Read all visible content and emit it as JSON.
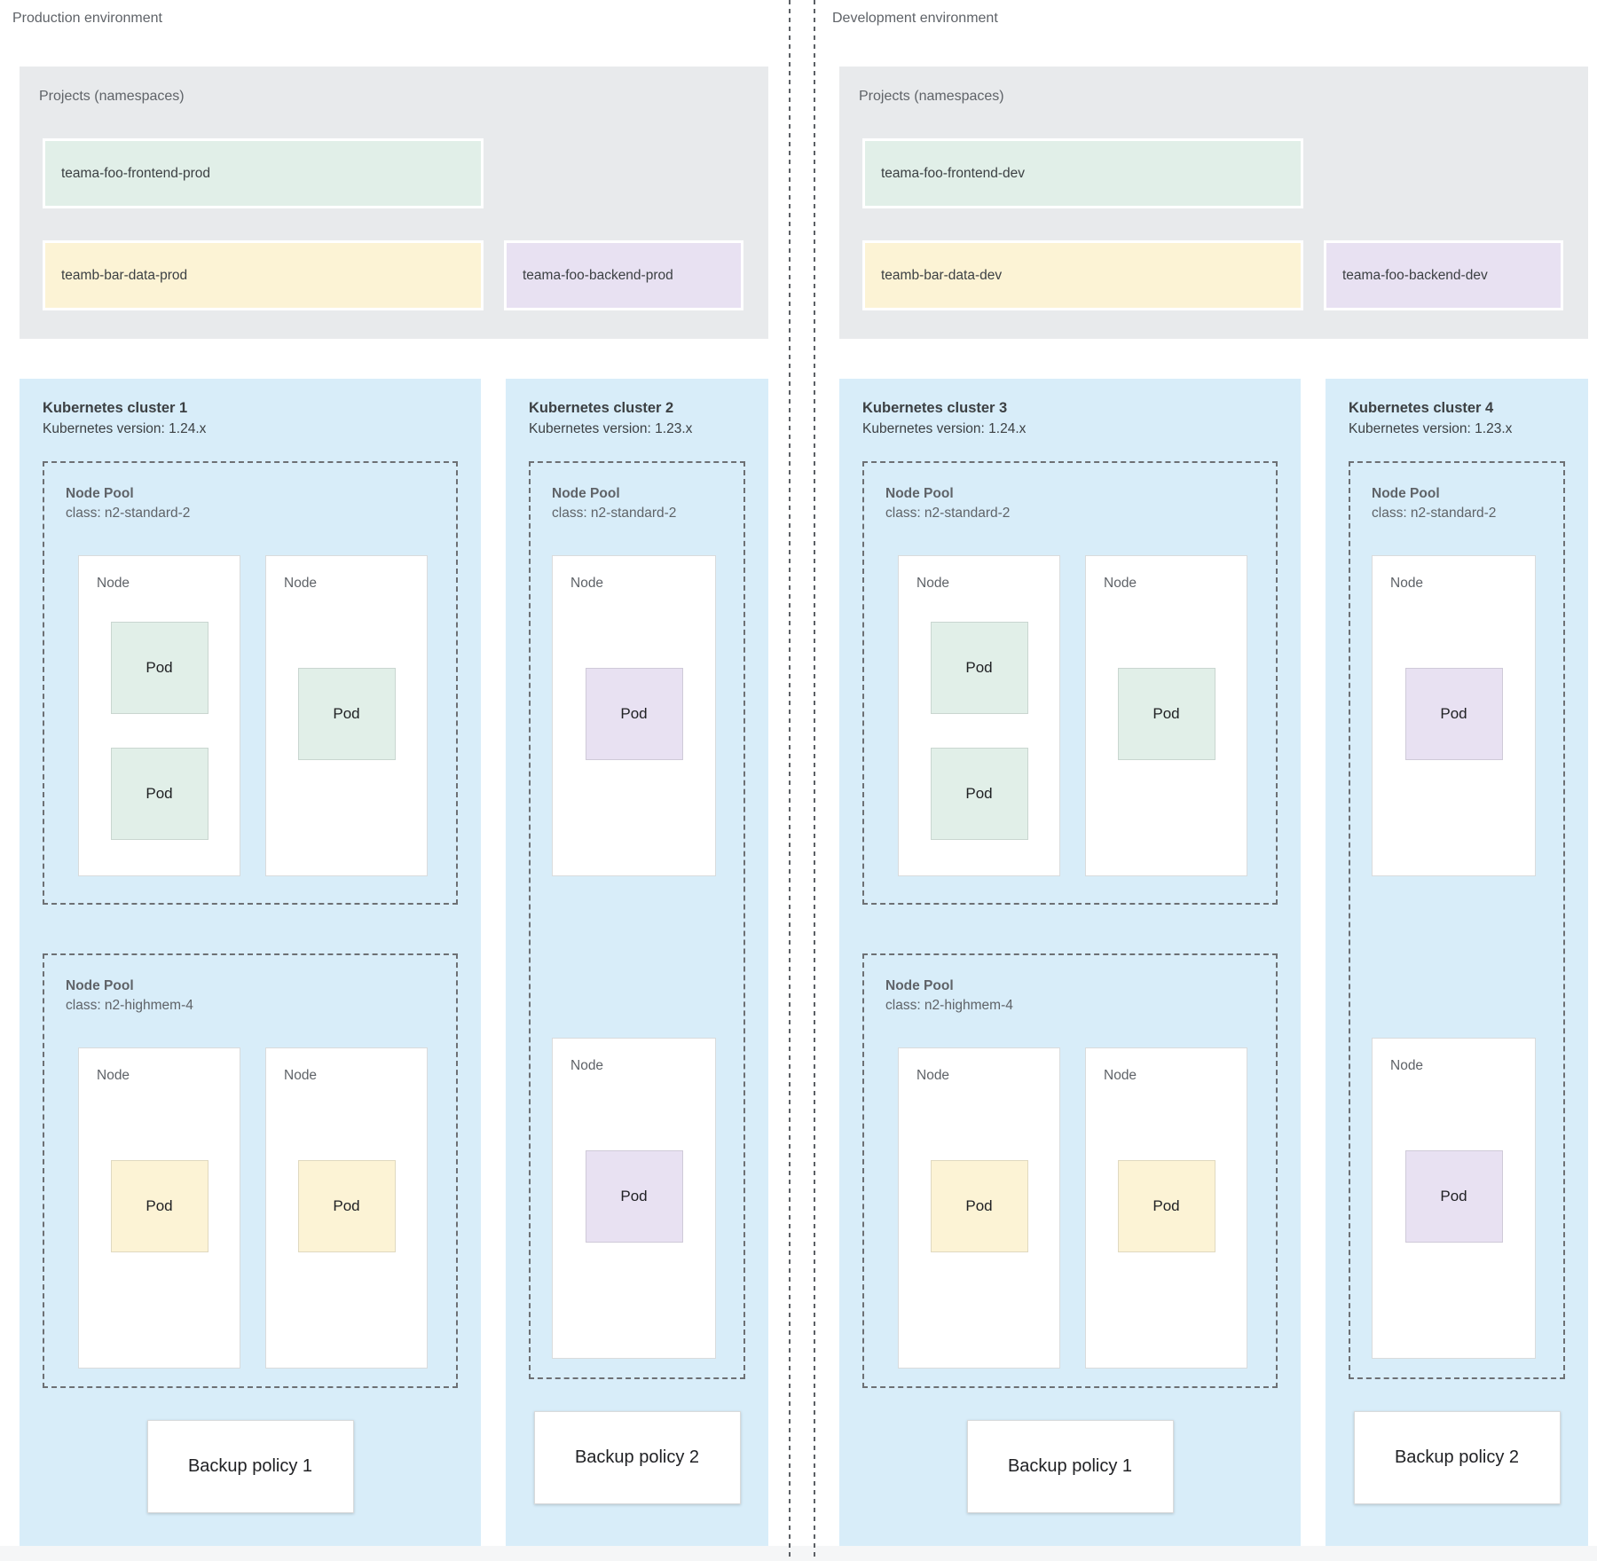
{
  "palette": {
    "green": "#e1efe8",
    "yellow": "#fcf3d5",
    "purple": "#e8e1f2",
    "cluster_blue": "#d8edf9",
    "panel_gray": "#e8eaec"
  },
  "environments": [
    {
      "title": "Production environment",
      "projects_panel": {
        "label": "Projects (namespaces)",
        "projects": [
          {
            "name": "teama-foo-frontend-prod",
            "color": "green"
          },
          {
            "name": "teamb-bar-data-prod",
            "color": "yellow"
          },
          {
            "name": "teama-foo-backend-prod",
            "color": "purple"
          }
        ]
      },
      "clusters": [
        {
          "title": "Kubernetes cluster 1",
          "version_line": "Kubernetes version: 1.24.x",
          "size": "wide",
          "pools": [
            {
              "label": "Node Pool",
              "class_line": "class: n2-standard-2",
              "layout": "row",
              "nodes": [
                {
                  "label": "Node",
                  "pods": [
                    {
                      "label": "Pod",
                      "color": "green"
                    },
                    {
                      "label": "Pod",
                      "color": "green"
                    }
                  ]
                },
                {
                  "label": "Node",
                  "pods": [
                    {
                      "label": "Pod",
                      "color": "green"
                    }
                  ]
                }
              ]
            },
            {
              "label": "Node Pool",
              "class_line": "class: n2-highmem-4",
              "layout": "row",
              "nodes": [
                {
                  "label": "Node",
                  "pods": [
                    {
                      "label": "Pod",
                      "color": "yellow"
                    }
                  ]
                },
                {
                  "label": "Node",
                  "pods": [
                    {
                      "label": "Pod",
                      "color": "yellow"
                    }
                  ]
                }
              ]
            }
          ],
          "backup_policy": "Backup policy 1"
        },
        {
          "title": "Kubernetes cluster 2",
          "version_line": "Kubernetes version: 1.23.x",
          "size": "narrow",
          "pools": [
            {
              "label": "Node Pool",
              "class_line": "class: n2-standard-2",
              "layout": "column",
              "nodes": [
                {
                  "label": "Node",
                  "pods": [
                    {
                      "label": "Pod",
                      "color": "purple"
                    }
                  ]
                },
                {
                  "label": "Node",
                  "pods": [
                    {
                      "label": "Pod",
                      "color": "purple"
                    }
                  ]
                }
              ]
            }
          ],
          "backup_policy": "Backup policy 2"
        }
      ]
    },
    {
      "title": "Development environment",
      "projects_panel": {
        "label": "Projects (namespaces)",
        "projects": [
          {
            "name": "teama-foo-frontend-dev",
            "color": "green"
          },
          {
            "name": "teamb-bar-data-dev",
            "color": "yellow"
          },
          {
            "name": "teama-foo-backend-dev",
            "color": "purple"
          }
        ]
      },
      "clusters": [
        {
          "title": "Kubernetes cluster 3",
          "version_line": "Kubernetes version: 1.24.x",
          "size": "wide",
          "pools": [
            {
              "label": "Node Pool",
              "class_line": "class: n2-standard-2",
              "layout": "row",
              "nodes": [
                {
                  "label": "Node",
                  "pods": [
                    {
                      "label": "Pod",
                      "color": "green"
                    },
                    {
                      "label": "Pod",
                      "color": "green"
                    }
                  ]
                },
                {
                  "label": "Node",
                  "pods": [
                    {
                      "label": "Pod",
                      "color": "green"
                    }
                  ]
                }
              ]
            },
            {
              "label": "Node Pool",
              "class_line": "class: n2-highmem-4",
              "layout": "row",
              "nodes": [
                {
                  "label": "Node",
                  "pods": [
                    {
                      "label": "Pod",
                      "color": "yellow"
                    }
                  ]
                },
                {
                  "label": "Node",
                  "pods": [
                    {
                      "label": "Pod",
                      "color": "yellow"
                    }
                  ]
                }
              ]
            }
          ],
          "backup_policy": "Backup policy 1"
        },
        {
          "title": "Kubernetes cluster 4",
          "version_line": "Kubernetes version: 1.23.x",
          "size": "narrow",
          "pools": [
            {
              "label": "Node Pool",
              "class_line": "class: n2-standard-2",
              "layout": "column",
              "nodes": [
                {
                  "label": "Node",
                  "pods": [
                    {
                      "label": "Pod",
                      "color": "purple"
                    }
                  ]
                },
                {
                  "label": "Node",
                  "pods": [
                    {
                      "label": "Pod",
                      "color": "purple"
                    }
                  ]
                }
              ]
            }
          ],
          "backup_policy": "Backup policy 2"
        }
      ]
    }
  ]
}
